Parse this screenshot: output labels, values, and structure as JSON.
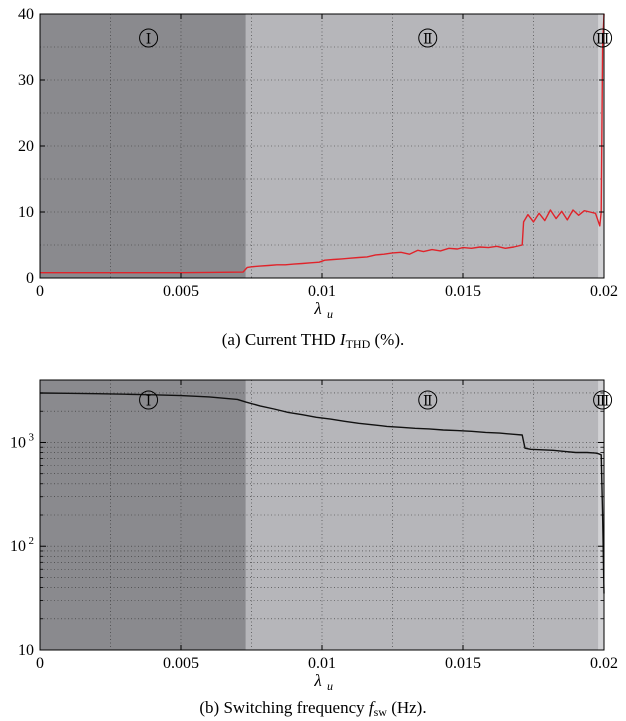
{
  "chart_data": [
    {
      "type": "line",
      "caption_prefix": "(a) Current THD",
      "caption_symbol": "I",
      "caption_sub": "THD",
      "caption_suffix": "(%).",
      "xlabel_symbol": "λ",
      "xlabel_sub": "u",
      "xlim": [
        0,
        0.02
      ],
      "ylim": [
        0,
        40
      ],
      "xticks": [
        "0",
        "0.005",
        "0.01",
        "0.015",
        "0.02"
      ],
      "yticks": [
        "0",
        "10",
        "20",
        "30",
        "40"
      ],
      "grid": true,
      "scale": "linear",
      "regions": [
        {
          "label": "Ⅰ",
          "x0": 0,
          "x1": 0.0073,
          "color": "#8a8a8e"
        },
        {
          "label": "Ⅱ",
          "x0": 0.0073,
          "x1": 0.0198,
          "color": "#b6b6ba"
        },
        {
          "label": "Ⅲ",
          "x0": 0.0198,
          "x1": 0.02,
          "color": "#d2d2d5"
        }
      ],
      "series_color": "#e0232a",
      "x": [
        0,
        0.001,
        0.002,
        0.003,
        0.004,
        0.005,
        0.006,
        0.0072,
        0.00735,
        0.0075,
        0.0078,
        0.0081,
        0.0084,
        0.0087,
        0.009,
        0.0093,
        0.0096,
        0.0099,
        0.0101,
        0.0104,
        0.0107,
        0.011,
        0.0113,
        0.0116,
        0.0119,
        0.0122,
        0.0125,
        0.0128,
        0.0131,
        0.0134,
        0.0136,
        0.0139,
        0.0142,
        0.0145,
        0.0148,
        0.015,
        0.0153,
        0.0156,
        0.0159,
        0.0162,
        0.0165,
        0.0168,
        0.0171,
        0.01715,
        0.0173,
        0.0175,
        0.0177,
        0.0179,
        0.0181,
        0.0183,
        0.0185,
        0.0187,
        0.0189,
        0.0191,
        0.0193,
        0.0195,
        0.0197,
        0.01985,
        0.0199,
        0.01995,
        0.02
      ],
      "values": [
        0.8,
        0.8,
        0.8,
        0.8,
        0.8,
        0.8,
        0.85,
        0.9,
        1.6,
        1.7,
        1.8,
        1.9,
        2.0,
        2.0,
        2.1,
        2.2,
        2.3,
        2.4,
        2.7,
        2.8,
        2.9,
        3.0,
        3.1,
        3.2,
        3.5,
        3.6,
        3.8,
        3.9,
        3.6,
        4.2,
        4.0,
        4.3,
        4.1,
        4.5,
        4.4,
        4.6,
        4.5,
        4.7,
        4.6,
        4.8,
        4.5,
        4.7,
        5.0,
        8.5,
        9.6,
        8.5,
        9.8,
        8.7,
        10.3,
        9.0,
        10.1,
        8.8,
        10.3,
        9.5,
        10.2,
        10.0,
        9.8,
        7.9,
        10.0,
        35.0,
        40.0
      ]
    },
    {
      "type": "line",
      "caption_prefix": "(b) Switching frequency",
      "caption_symbol": "f",
      "caption_sub": "sw",
      "caption_suffix": "(Hz).",
      "xlabel_symbol": "λ",
      "xlabel_sub": "u",
      "xlim": [
        0,
        0.02
      ],
      "ylim": [
        10,
        4000
      ],
      "xticks": [
        "0",
        "0.005",
        "0.01",
        "0.015",
        "0.02"
      ],
      "ytick_base": "10",
      "ytick_exps": [
        "",
        "2",
        "3"
      ],
      "grid": true,
      "scale": "log",
      "regions": [
        {
          "label": "Ⅰ",
          "x0": 0,
          "x1": 0.0073,
          "color": "#8a8a8e"
        },
        {
          "label": "Ⅱ",
          "x0": 0.0073,
          "x1": 0.0198,
          "color": "#b6b6ba"
        },
        {
          "label": "Ⅲ",
          "x0": 0.0198,
          "x1": 0.02,
          "color": "#d2d2d5"
        }
      ],
      "series_color": "#111111",
      "x": [
        0,
        0.001,
        0.002,
        0.003,
        0.004,
        0.005,
        0.006,
        0.007,
        0.0073,
        0.0078,
        0.0083,
        0.0088,
        0.0093,
        0.0098,
        0.0103,
        0.0108,
        0.0113,
        0.0118,
        0.0123,
        0.0128,
        0.0133,
        0.0138,
        0.0143,
        0.0148,
        0.0153,
        0.0158,
        0.0163,
        0.0168,
        0.0171,
        0.0172,
        0.0174,
        0.0178,
        0.0182,
        0.0186,
        0.019,
        0.0194,
        0.0197,
        0.0198,
        0.0199,
        0.01995,
        0.02
      ],
      "values": [
        3000,
        2980,
        2950,
        2920,
        2880,
        2830,
        2750,
        2600,
        2450,
        2250,
        2100,
        1950,
        1850,
        1750,
        1680,
        1600,
        1530,
        1480,
        1430,
        1400,
        1370,
        1350,
        1320,
        1300,
        1280,
        1250,
        1230,
        1200,
        1180,
        880,
        860,
        850,
        840,
        820,
        800,
        800,
        790,
        780,
        760,
        200,
        35
      ]
    }
  ]
}
